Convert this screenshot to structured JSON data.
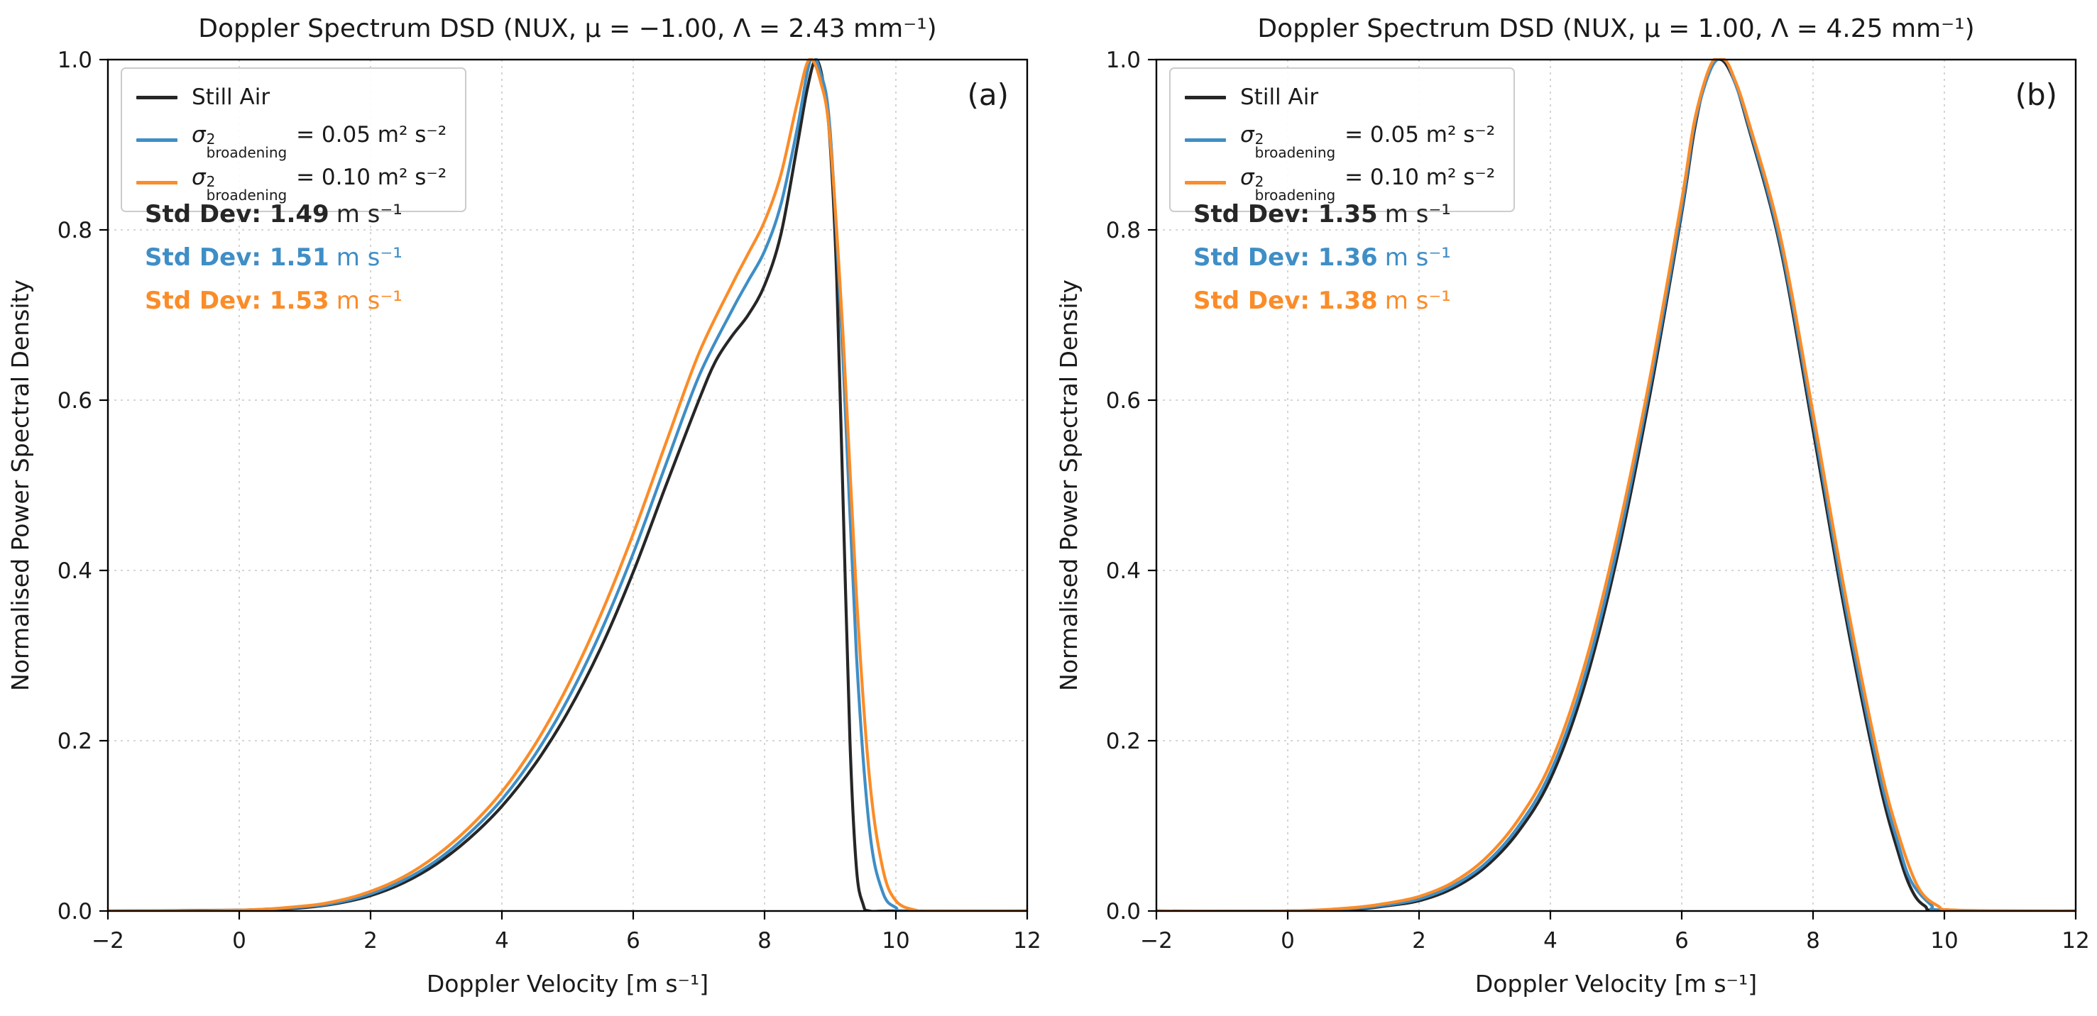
{
  "figure": {
    "background": "#ffffff"
  },
  "colors": {
    "still_air": "#262626",
    "broadening_005": "#3f8ec6",
    "broadening_010": "#fb8c28",
    "grid": "#c9c9c9",
    "spine": "#000000",
    "legend_border": "#cccccc",
    "text": "#1a1a1a"
  },
  "legend": {
    "still_air": "Still Air",
    "sigma": "σ",
    "sigma_sup": "2",
    "sigma_sub": "broadening",
    "value_005": " = 0.05 m² s⁻²",
    "value_010": " = 0.10 m² s⁻²"
  },
  "chart_data": [
    {
      "type": "line",
      "panel_label": "(a)",
      "title": "Doppler Spectrum DSD (NUX, μ = −1.00, Λ = 2.43 mm⁻¹)",
      "xlabel": "Doppler Velocity [m s⁻¹]",
      "ylabel": "Normalised Power Spectral Density",
      "xlim": [
        -2,
        12
      ],
      "ylim": [
        0,
        1
      ],
      "xticks": [
        -2,
        0,
        2,
        4,
        6,
        8,
        10,
        12
      ],
      "yticks": [
        0.0,
        0.2,
        0.4,
        0.6,
        0.8,
        1.0
      ],
      "grid": "dashed",
      "legend_position": "upper-left",
      "std_devs": [
        {
          "text": "Std Dev: 1.49",
          "value": 1.49,
          "unit": "m s⁻¹",
          "color_key": "still_air"
        },
        {
          "text": "Std Dev: 1.51",
          "value": 1.51,
          "unit": "m s⁻¹",
          "color_key": "broadening_005"
        },
        {
          "text": "Std Dev: 1.53",
          "value": 1.53,
          "unit": "m s⁻¹",
          "color_key": "broadening_010"
        }
      ],
      "series": [
        {
          "name": "Still Air",
          "key": "still-air",
          "color_key": "still_air",
          "x": [
            -2,
            0,
            0.5,
            1,
            1.5,
            2,
            2.5,
            3,
            3.5,
            4,
            4.5,
            5,
            5.5,
            6,
            6.5,
            7,
            7.25,
            7.5,
            7.75,
            8,
            8.25,
            8.5,
            8.65,
            8.78,
            8.9,
            9.0,
            9.1,
            9.2,
            9.3,
            9.4,
            9.5,
            9.6,
            10,
            12
          ],
          "y": [
            0,
            0.001,
            0.002,
            0.004,
            0.009,
            0.018,
            0.033,
            0.055,
            0.085,
            0.123,
            0.172,
            0.233,
            0.308,
            0.398,
            0.5,
            0.6,
            0.645,
            0.675,
            0.7,
            0.735,
            0.795,
            0.9,
            0.965,
            1.0,
            0.97,
            0.9,
            0.74,
            0.47,
            0.2,
            0.05,
            0.008,
            0,
            0,
            0
          ]
        },
        {
          "name": "σ²_broadening = 0.05 m² s⁻²",
          "key": "broadening-005",
          "color_key": "broadening_005",
          "x": [
            -2,
            0,
            1,
            1.5,
            2,
            2.5,
            3,
            3.5,
            4,
            4.5,
            5,
            5.5,
            6,
            6.5,
            7,
            7.5,
            7.75,
            8,
            8.25,
            8.5,
            8.7,
            8.85,
            9.0,
            9.2,
            9.4,
            9.6,
            9.8,
            10,
            10.2,
            12
          ],
          "y": [
            0,
            0.001,
            0.005,
            0.01,
            0.02,
            0.036,
            0.059,
            0.091,
            0.131,
            0.183,
            0.248,
            0.327,
            0.42,
            0.525,
            0.628,
            0.705,
            0.74,
            0.775,
            0.83,
            0.92,
            1.0,
            0.985,
            0.915,
            0.64,
            0.3,
            0.095,
            0.022,
            0.004,
            0,
            0
          ]
        },
        {
          "name": "σ²_broadening = 0.10 m² s⁻²",
          "key": "broadening-010",
          "color_key": "broadening_010",
          "x": [
            -2,
            0,
            1,
            1.5,
            2,
            2.5,
            3,
            3.5,
            4,
            4.5,
            5,
            5.5,
            6,
            6.5,
            7,
            7.5,
            7.75,
            8,
            8.25,
            8.5,
            8.68,
            8.85,
            9.0,
            9.2,
            9.4,
            9.6,
            9.8,
            10,
            10.3,
            10.6,
            12
          ],
          "y": [
            0,
            0.001,
            0.006,
            0.012,
            0.023,
            0.04,
            0.065,
            0.098,
            0.14,
            0.195,
            0.264,
            0.347,
            0.443,
            0.55,
            0.655,
            0.735,
            0.772,
            0.81,
            0.865,
            0.95,
            1.0,
            0.975,
            0.905,
            0.67,
            0.37,
            0.155,
            0.05,
            0.012,
            0.001,
            0,
            0
          ]
        }
      ]
    },
    {
      "type": "line",
      "panel_label": "(b)",
      "title": "Doppler Spectrum DSD (NUX, μ = 1.00, Λ = 4.25 mm⁻¹)",
      "xlabel": "Doppler Velocity [m s⁻¹]",
      "ylabel": "Normalised Power Spectral Density",
      "xlim": [
        -2,
        12
      ],
      "ylim": [
        0,
        1
      ],
      "xticks": [
        -2,
        0,
        2,
        4,
        6,
        8,
        10,
        12
      ],
      "yticks": [
        0.0,
        0.2,
        0.4,
        0.6,
        0.8,
        1.0
      ],
      "grid": "dashed",
      "legend_position": "upper-left",
      "std_devs": [
        {
          "text": "Std Dev: 1.35",
          "value": 1.35,
          "unit": "m s⁻¹",
          "color_key": "still_air"
        },
        {
          "text": "Std Dev: 1.36",
          "value": 1.36,
          "unit": "m s⁻¹",
          "color_key": "broadening_005"
        },
        {
          "text": "Std Dev: 1.38",
          "value": 1.38,
          "unit": "m s⁻¹",
          "color_key": "broadening_010"
        }
      ],
      "series": [
        {
          "name": "Still Air",
          "key": "still-air",
          "color_key": "still_air",
          "x": [
            -2,
            0,
            1,
            1.5,
            2,
            2.5,
            3,
            3.5,
            4,
            4.5,
            5,
            5.5,
            6,
            6.2,
            6.4,
            6.6,
            6.8,
            7,
            7.5,
            8,
            8.5,
            9,
            9.3,
            9.5,
            9.7,
            10,
            12
          ],
          "y": [
            0,
            0,
            0.002,
            0.006,
            0.012,
            0.026,
            0.051,
            0.092,
            0.155,
            0.26,
            0.41,
            0.6,
            0.82,
            0.92,
            0.985,
            1.0,
            0.975,
            0.925,
            0.78,
            0.565,
            0.345,
            0.155,
            0.068,
            0.025,
            0.006,
            0,
            0
          ]
        },
        {
          "name": "σ²_broadening = 0.05 m² s⁻²",
          "key": "broadening-005",
          "color_key": "broadening_005",
          "x": [
            -2,
            0,
            1,
            1.5,
            2,
            2.5,
            3,
            3.5,
            4,
            4.5,
            5,
            5.5,
            6,
            6.2,
            6.45,
            6.65,
            6.8,
            7,
            7.5,
            8,
            8.5,
            9,
            9.3,
            9.5,
            9.8,
            10,
            12
          ],
          "y": [
            0,
            0,
            0.003,
            0.007,
            0.014,
            0.029,
            0.055,
            0.098,
            0.163,
            0.27,
            0.42,
            0.61,
            0.825,
            0.925,
            0.99,
            1.0,
            0.975,
            0.928,
            0.785,
            0.575,
            0.355,
            0.165,
            0.078,
            0.034,
            0.007,
            0.001,
            0
          ]
        },
        {
          "name": "σ²_broadening = 0.10 m² s⁻²",
          "key": "broadening-010",
          "color_key": "broadening_010",
          "x": [
            -2,
            0,
            1,
            1.5,
            2,
            2.5,
            3,
            3.5,
            4,
            4.5,
            5,
            5.5,
            6,
            6.2,
            6.45,
            6.65,
            6.8,
            7,
            7.5,
            8,
            8.5,
            9,
            9.3,
            9.6,
            9.9,
            10.2,
            12
          ],
          "y": [
            0,
            0,
            0.004,
            0.009,
            0.017,
            0.033,
            0.061,
            0.106,
            0.173,
            0.283,
            0.435,
            0.62,
            0.835,
            0.93,
            0.995,
            1.0,
            0.978,
            0.932,
            0.793,
            0.585,
            0.368,
            0.178,
            0.09,
            0.028,
            0.006,
            0.001,
            0
          ]
        }
      ]
    }
  ]
}
